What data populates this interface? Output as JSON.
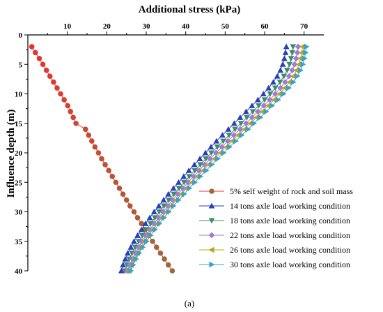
{
  "caption": "(a)",
  "chart_data": {
    "type": "line",
    "xlabel": "Additional stress (kPa)",
    "ylabel": "Influence depth (m)",
    "xlim": [
      0,
      75
    ],
    "ylim": [
      0,
      40
    ],
    "y_inverted": true,
    "x_axis_position": "top",
    "xticks": [
      10,
      20,
      30,
      40,
      50,
      60,
      70
    ],
    "yticks": [
      0,
      5,
      10,
      15,
      20,
      25,
      30,
      35,
      40
    ],
    "grid": false,
    "legend_position": "bottom-right",
    "series": [
      {
        "name": "5% self weight of rock and soil mass",
        "color": "#e8312f",
        "color_end": "#9a6a3a",
        "marker": "circle",
        "y": [
          2,
          3,
          4,
          5,
          6,
          7,
          8,
          9,
          10,
          11,
          12,
          13,
          14,
          15,
          16,
          17,
          18,
          19,
          20,
          21,
          22,
          23,
          24,
          25,
          26,
          27,
          28,
          29,
          30,
          31,
          32,
          33,
          34,
          35,
          36,
          37,
          38,
          39,
          40
        ],
        "x": [
          1.0,
          1.9,
          2.9,
          3.8,
          4.7,
          5.6,
          6.5,
          7.4,
          8.3,
          9.2,
          10.1,
          10.8,
          11.5,
          12.2,
          14.6,
          15.4,
          16.2,
          17.0,
          17.9,
          18.7,
          19.6,
          20.5,
          21.4,
          22.3,
          23.2,
          24.1,
          25.0,
          25.9,
          26.9,
          27.8,
          28.8,
          29.7,
          30.7,
          31.6,
          32.6,
          33.6,
          34.6,
          35.6,
          36.6
        ]
      },
      {
        "name": "14 tons axle load working condition",
        "color": "#2b3fb8",
        "marker": "triangle-up",
        "y": [
          2,
          3,
          4,
          5,
          6,
          7,
          8,
          9,
          10,
          11,
          12,
          13,
          14,
          15,
          16,
          17,
          18,
          19,
          20,
          21,
          22,
          23,
          24,
          25,
          26,
          27,
          28,
          29,
          30,
          31,
          32,
          33,
          34,
          35,
          36,
          37,
          38,
          39,
          40
        ],
        "x": [
          65.5,
          65.3,
          65.0,
          64.6,
          64.0,
          63.2,
          62.2,
          61.0,
          59.7,
          58.3,
          56.8,
          55.3,
          53.8,
          52.3,
          50.8,
          49.3,
          47.8,
          46.4,
          45.0,
          43.6,
          42.2,
          40.8,
          39.5,
          38.2,
          36.9,
          35.6,
          34.4,
          33.2,
          32.0,
          30.9,
          29.8,
          28.8,
          27.8,
          26.9,
          26.1,
          25.3,
          24.7,
          24.1,
          23.7
        ]
      },
      {
        "name": "18 tons axle load working condition",
        "color": "#3c8c6a",
        "marker": "triangle-down",
        "y": [
          2,
          3,
          4,
          5,
          6,
          7,
          8,
          9,
          10,
          11,
          12,
          13,
          14,
          15,
          16,
          17,
          18,
          19,
          20,
          21,
          22,
          23,
          24,
          25,
          26,
          27,
          28,
          29,
          30,
          31,
          32,
          33,
          34,
          35,
          36,
          37,
          38,
          39,
          40
        ],
        "x": [
          67.2,
          67.0,
          66.7,
          66.3,
          65.7,
          64.9,
          63.9,
          62.7,
          61.4,
          60.0,
          58.5,
          57.0,
          55.5,
          54.0,
          52.5,
          51.0,
          49.5,
          48.0,
          46.5,
          45.1,
          43.7,
          42.3,
          40.9,
          39.6,
          38.3,
          37.0,
          35.7,
          34.5,
          33.3,
          32.2,
          31.1,
          30.0,
          29.0,
          28.1,
          27.2,
          26.4,
          25.7,
          25.1,
          24.6
        ]
      },
      {
        "name": "22 tons axle load working condition",
        "color": "#a07ad6",
        "marker": "diamond",
        "y": [
          2,
          3,
          4,
          5,
          6,
          7,
          8,
          9,
          10,
          11,
          12,
          13,
          14,
          15,
          16,
          17,
          18,
          19,
          20,
          21,
          22,
          23,
          24,
          25,
          26,
          27,
          28,
          29,
          30,
          31,
          32,
          33,
          34,
          35,
          36,
          37,
          38,
          39,
          40
        ],
        "x": [
          68.5,
          68.3,
          68.0,
          67.6,
          67.0,
          66.2,
          65.2,
          64.0,
          62.7,
          61.3,
          59.8,
          58.3,
          56.8,
          55.3,
          53.8,
          52.2,
          50.7,
          49.2,
          47.7,
          46.2,
          44.8,
          43.4,
          42.0,
          40.6,
          39.3,
          38.0,
          36.7,
          35.5,
          34.3,
          33.1,
          32.0,
          30.9,
          29.9,
          28.9,
          28.0,
          27.2,
          26.5,
          25.8,
          25.2
        ]
      },
      {
        "name": "26 tons axle load working condition",
        "color": "#b8a41f",
        "marker": "triangle-left",
        "y": [
          2,
          3,
          4,
          5,
          6,
          7,
          8,
          9,
          10,
          11,
          12,
          13,
          14,
          15,
          16,
          17,
          18,
          19,
          20,
          21,
          22,
          23,
          24,
          25,
          26,
          27,
          28,
          29,
          30,
          31,
          32,
          33,
          34,
          35,
          36,
          37,
          38,
          39,
          40
        ],
        "x": [
          69.6,
          69.4,
          69.1,
          68.7,
          68.1,
          67.3,
          66.3,
          65.1,
          63.8,
          62.4,
          60.9,
          59.4,
          57.9,
          56.4,
          54.9,
          53.3,
          51.8,
          50.3,
          48.8,
          47.3,
          45.8,
          44.4,
          43.0,
          41.6,
          40.2,
          38.9,
          37.6,
          36.3,
          35.1,
          33.9,
          32.8,
          31.7,
          30.6,
          29.6,
          28.7,
          27.8,
          27.0,
          26.3,
          25.7
        ]
      },
      {
        "name": "30 tons axle load working condition",
        "color": "#3aa0c8",
        "marker": "triangle-right",
        "y": [
          2,
          3,
          4,
          5,
          6,
          7,
          8,
          9,
          10,
          11,
          12,
          13,
          14,
          15,
          16,
          17,
          18,
          19,
          20,
          21,
          22,
          23,
          24,
          25,
          26,
          27,
          28,
          29,
          30,
          31,
          32,
          33,
          34,
          35,
          36,
          37,
          38,
          39,
          40
        ],
        "x": [
          70.6,
          70.4,
          70.1,
          69.7,
          69.1,
          68.3,
          67.3,
          66.1,
          64.8,
          63.4,
          61.9,
          60.4,
          58.9,
          57.3,
          55.8,
          54.2,
          52.7,
          51.1,
          49.6,
          48.1,
          46.6,
          45.2,
          43.7,
          42.3,
          40.9,
          39.6,
          38.2,
          36.9,
          35.7,
          34.5,
          33.3,
          32.2,
          31.1,
          30.1,
          29.1,
          28.2,
          27.4,
          26.7,
          26.1
        ]
      }
    ]
  }
}
